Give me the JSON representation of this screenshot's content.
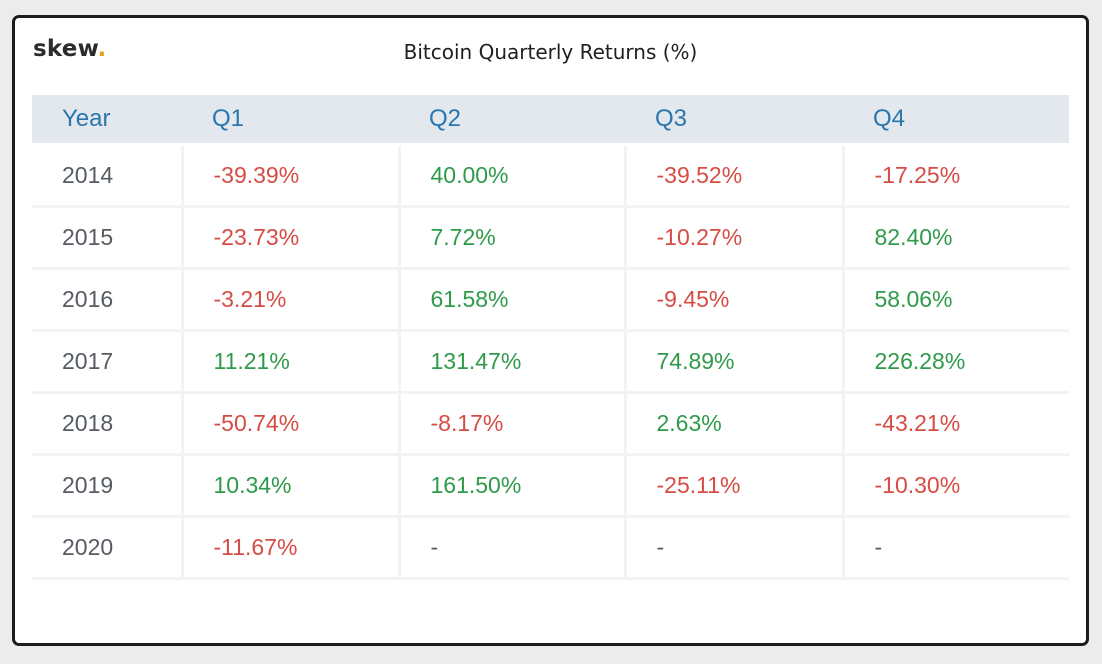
{
  "brand": {
    "name": "skew",
    "dot": "."
  },
  "colors": {
    "negative": "#d64c44",
    "positive": "#2f9a4a",
    "header_text": "#2a76ad",
    "header_bg": "#e3e8ef",
    "logo_dot": "#e3a21a"
  },
  "chart_data": {
    "type": "table",
    "title": "Bitcoin Quarterly Returns (%)",
    "columns": [
      "Year",
      "Q1",
      "Q2",
      "Q3",
      "Q4"
    ],
    "rows": [
      {
        "year": "2014",
        "values": [
          "-39.39%",
          "40.00%",
          "-39.52%",
          "-17.25%"
        ]
      },
      {
        "year": "2015",
        "values": [
          "-23.73%",
          "7.72%",
          "-10.27%",
          "82.40%"
        ]
      },
      {
        "year": "2016",
        "values": [
          "-3.21%",
          "61.58%",
          "-9.45%",
          "58.06%"
        ]
      },
      {
        "year": "2017",
        "values": [
          "11.21%",
          "131.47%",
          "74.89%",
          "226.28%"
        ]
      },
      {
        "year": "2018",
        "values": [
          "-50.74%",
          "-8.17%",
          "2.63%",
          "-43.21%"
        ]
      },
      {
        "year": "2019",
        "values": [
          "10.34%",
          "161.50%",
          "-25.11%",
          "-10.30%"
        ]
      },
      {
        "year": "2020",
        "values": [
          "-11.67%",
          "-",
          "-",
          "-"
        ]
      }
    ]
  }
}
